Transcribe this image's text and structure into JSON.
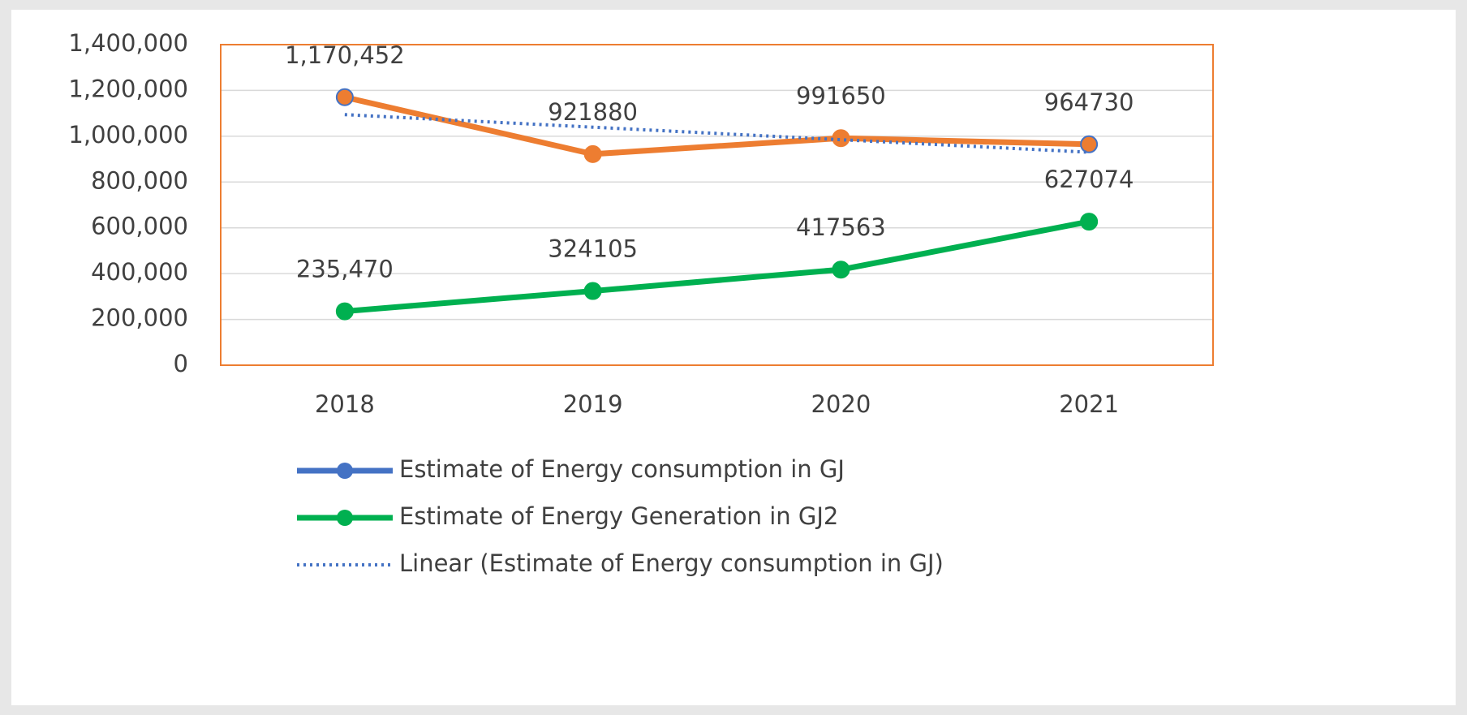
{
  "chart_data": {
    "type": "line",
    "categories": [
      "2018",
      "2019",
      "2020",
      "2021"
    ],
    "series": [
      {
        "name": "Estimate of Energy consumption in GJ",
        "color": "#4472c4",
        "line_color": "#ed7d31",
        "values": [
          1170452,
          921880,
          991650,
          964730
        ],
        "value_labels": [
          "1,170,452",
          "921880",
          "991650",
          "964730"
        ]
      },
      {
        "name": "Estimate of Energy Generation in GJ2",
        "color": "#00b050",
        "values": [
          235470,
          324105,
          417563,
          627074
        ],
        "value_labels": [
          "235,470",
          "324105",
          "417563",
          "627074"
        ]
      }
    ],
    "trendline": {
      "name": "Linear (Estimate of Energy consumption in GJ)",
      "type": "linear",
      "color": "#4472c4"
    },
    "ylim": [
      0,
      1400000
    ],
    "yticks": [
      {
        "value": 0,
        "label": "0"
      },
      {
        "value": 200000,
        "label": "200,000"
      },
      {
        "value": 400000,
        "label": "400,000"
      },
      {
        "value": 600000,
        "label": "600,000"
      },
      {
        "value": 800000,
        "label": "800,000"
      },
      {
        "value": 1000000,
        "label": "1,000,000"
      },
      {
        "value": 1200000,
        "label": "1,200,000"
      },
      {
        "value": 1400000,
        "label": "1,400,000"
      }
    ],
    "grid": true,
    "plot_border_color": "#ed7d31",
    "legend": "bottom"
  }
}
